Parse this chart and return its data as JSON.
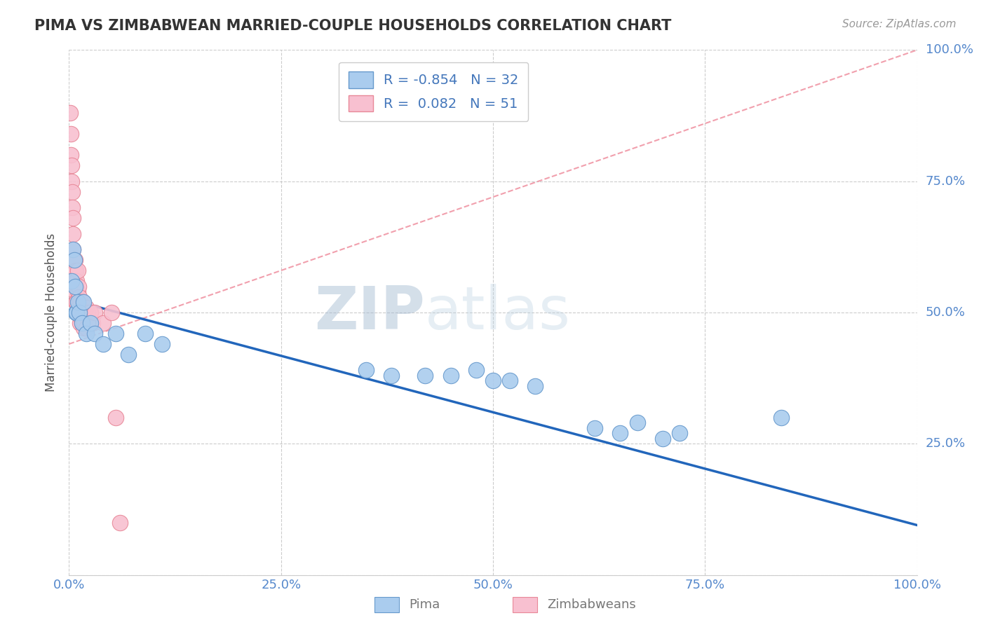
{
  "title": "PIMA VS ZIMBABWEAN MARRIED-COUPLE HOUSEHOLDS CORRELATION CHART",
  "source": "Source: ZipAtlas.com",
  "ylabel": "Married-couple Households",
  "watermark_text": "ZIPatlas",
  "pima_R": -0.854,
  "pima_N": 32,
  "zimb_R": 0.082,
  "zimb_N": 51,
  "pima_color": "#aaccee",
  "pima_edge_color": "#6699cc",
  "zimb_color": "#f8c0d0",
  "zimb_edge_color": "#e88898",
  "trend_blue_color": "#2266bb",
  "trend_pink_color": "#ee8899",
  "grid_color": "#cccccc",
  "bg_color": "#ffffff",
  "axis_label_color": "#5588cc",
  "title_color": "#333333",
  "source_color": "#999999",
  "ylabel_color": "#555555",
  "legend_text_color": "#4477bb",
  "pima_x": [
    0.003,
    0.005,
    0.006,
    0.007,
    0.008,
    0.009,
    0.01,
    0.012,
    0.015,
    0.017,
    0.02,
    0.025,
    0.03,
    0.04,
    0.055,
    0.07,
    0.09,
    0.11,
    0.35,
    0.38,
    0.42,
    0.45,
    0.48,
    0.5,
    0.52,
    0.55,
    0.62,
    0.65,
    0.67,
    0.7,
    0.72,
    0.84
  ],
  "pima_y": [
    0.56,
    0.62,
    0.6,
    0.55,
    0.5,
    0.5,
    0.52,
    0.5,
    0.48,
    0.52,
    0.46,
    0.48,
    0.46,
    0.44,
    0.46,
    0.42,
    0.46,
    0.44,
    0.39,
    0.38,
    0.38,
    0.38,
    0.39,
    0.37,
    0.37,
    0.36,
    0.28,
    0.27,
    0.29,
    0.26,
    0.27,
    0.3
  ],
  "zimb_x": [
    0.001,
    0.002,
    0.002,
    0.003,
    0.003,
    0.004,
    0.004,
    0.005,
    0.005,
    0.005,
    0.006,
    0.006,
    0.006,
    0.007,
    0.007,
    0.007,
    0.008,
    0.008,
    0.008,
    0.009,
    0.009,
    0.01,
    0.01,
    0.01,
    0.011,
    0.011,
    0.012,
    0.012,
    0.013,
    0.013,
    0.014,
    0.014,
    0.015,
    0.015,
    0.016,
    0.016,
    0.017,
    0.017,
    0.018,
    0.018,
    0.019,
    0.02,
    0.02,
    0.022,
    0.025,
    0.028,
    0.03,
    0.04,
    0.05,
    0.055,
    0.06
  ],
  "zimb_y": [
    0.88,
    0.84,
    0.8,
    0.78,
    0.75,
    0.73,
    0.7,
    0.68,
    0.65,
    0.62,
    0.6,
    0.58,
    0.56,
    0.6,
    0.56,
    0.54,
    0.58,
    0.55,
    0.52,
    0.56,
    0.52,
    0.58,
    0.54,
    0.5,
    0.55,
    0.52,
    0.53,
    0.5,
    0.52,
    0.48,
    0.52,
    0.49,
    0.51,
    0.48,
    0.52,
    0.49,
    0.51,
    0.47,
    0.51,
    0.48,
    0.5,
    0.51,
    0.47,
    0.5,
    0.5,
    0.48,
    0.5,
    0.48,
    0.5,
    0.3,
    0.1
  ],
  "blue_trend_x0": 0.0,
  "blue_trend_y0": 0.525,
  "blue_trend_x1": 1.0,
  "blue_trend_y1": 0.095,
  "pink_trend_x0": 0.0,
  "pink_trend_y0": 0.44,
  "pink_trend_x1": 1.0,
  "pink_trend_y1": 1.0,
  "xlim": [
    0.0,
    1.0
  ],
  "ylim": [
    0.0,
    1.0
  ],
  "yticks": [
    0.0,
    0.25,
    0.5,
    0.75,
    1.0
  ],
  "xticks": [
    0.0,
    0.25,
    0.5,
    0.75,
    1.0
  ]
}
